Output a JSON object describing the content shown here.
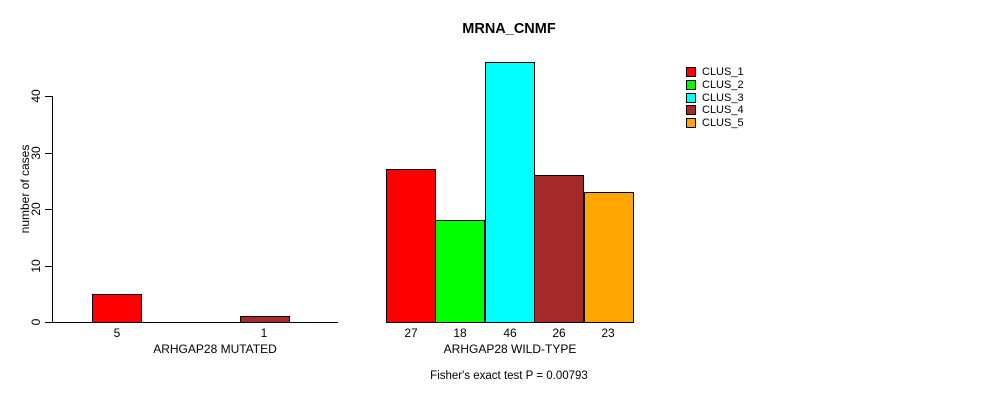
{
  "chart_data": {
    "type": "bar",
    "title": "MRNA_CNMF",
    "ylabel": "number of cases",
    "xlabel": "",
    "annotation": "Fisher's exact test P = 0.00793",
    "categories": [
      "ARHGAP28 MUTATED",
      "ARHGAP28 WILD-TYPE"
    ],
    "series": [
      {
        "name": "CLUS_1",
        "color": "#FF0000",
        "values": [
          5,
          27
        ]
      },
      {
        "name": "CLUS_2",
        "color": "#00FF00",
        "values": [
          0,
          18
        ]
      },
      {
        "name": "CLUS_3",
        "color": "#00FFFF",
        "values": [
          0,
          46
        ]
      },
      {
        "name": "CLUS_4",
        "color": "#A52A2A",
        "values": [
          1,
          26
        ]
      },
      {
        "name": "CLUS_5",
        "color": "#FFA500",
        "values": [
          0,
          23
        ]
      }
    ],
    "y_ticks": [
      0,
      10,
      20,
      30,
      40
    ],
    "ylim": [
      0,
      46
    ],
    "bar_value_labels": true,
    "legend_position": "top-right",
    "legend_entries": [
      "CLUS_1",
      "CLUS_2",
      "CLUS_3",
      "CLUS_4",
      "CLUS_5"
    ],
    "grid": false,
    "background_color": "#ffffff",
    "axis_color": "#000000"
  }
}
